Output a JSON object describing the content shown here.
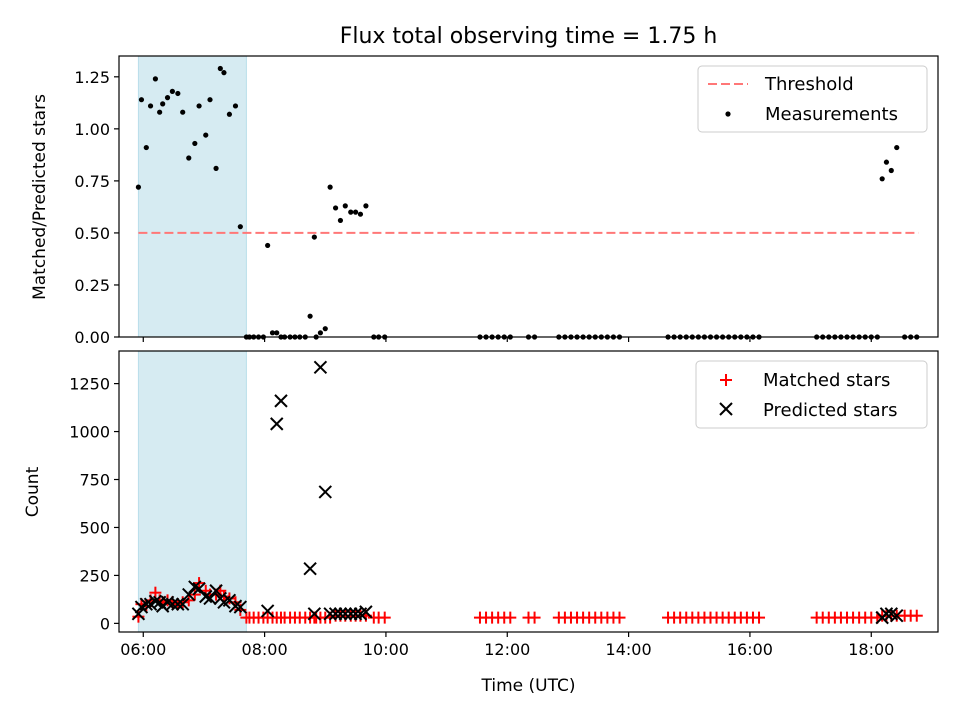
{
  "title": "Flux total observing time = 1.75 h",
  "chart_data": [
    {
      "type": "scatter",
      "ylabel": "Matched/Predicted stars",
      "x_unit": "hours UTC",
      "xlim": [
        5.6,
        19.1
      ],
      "ylim": [
        0,
        1.35
      ],
      "yticks": [
        0,
        0.25,
        0.5,
        0.75,
        1.0,
        1.25
      ],
      "ytick_labels": [
        "0.00",
        "0.25",
        "0.50",
        "0.75",
        "1.00",
        "1.25"
      ],
      "highlight_span": [
        5.92,
        7.7
      ],
      "highlight_color": "#add8e6",
      "threshold": {
        "name": "Threshold",
        "value": 0.5,
        "x_range": [
          5.92,
          18.78
        ],
        "color": "#ff7777"
      },
      "legend": {
        "loc": "upper right",
        "entries": [
          "Threshold",
          "Measurements"
        ]
      },
      "series": [
        {
          "name": "Measurements",
          "color": "#000000",
          "x": [
            5.92,
            5.97,
            6.05,
            6.12,
            6.2,
            6.27,
            6.32,
            6.4,
            6.48,
            6.57,
            6.65,
            6.75,
            6.85,
            6.92,
            7.03,
            7.1,
            7.2,
            7.27,
            7.33,
            7.42,
            7.52,
            7.6,
            7.7,
            7.75,
            7.82,
            7.9,
            7.98,
            8.05,
            8.13,
            8.2,
            8.27,
            8.33,
            8.42,
            8.5,
            8.58,
            8.67,
            8.75,
            8.82,
            8.85,
            8.92,
            9.0,
            9.08,
            9.17,
            9.25,
            9.33,
            9.42,
            9.5,
            9.58,
            9.67,
            9.8,
            9.88,
            9.98,
            11.55,
            11.65,
            11.75,
            11.85,
            11.95,
            12.05,
            12.35,
            12.45,
            12.85,
            12.95,
            13.05,
            13.15,
            13.25,
            13.35,
            13.45,
            13.55,
            13.65,
            13.75,
            13.85,
            14.65,
            14.75,
            14.85,
            14.95,
            15.05,
            15.15,
            15.25,
            15.35,
            15.45,
            15.55,
            15.65,
            15.75,
            15.85,
            15.95,
            16.05,
            16.15,
            17.1,
            17.2,
            17.3,
            17.4,
            17.5,
            17.6,
            17.7,
            17.8,
            17.9,
            18.0,
            18.1,
            18.18,
            18.25,
            18.33,
            18.42,
            18.55,
            18.65,
            18.75
          ],
          "y": [
            0.72,
            1.14,
            0.91,
            1.11,
            1.24,
            1.08,
            1.12,
            1.15,
            1.18,
            1.17,
            1.08,
            0.86,
            0.93,
            1.11,
            0.97,
            1.14,
            0.81,
            1.29,
            1.27,
            1.07,
            1.11,
            0.53,
            0.0,
            0.0,
            0.0,
            0.0,
            0.0,
            0.44,
            0.02,
            0.02,
            0.0,
            0.0,
            0.0,
            0.0,
            0.0,
            0.0,
            0.1,
            0.48,
            0.0,
            0.02,
            0.04,
            0.72,
            0.62,
            0.56,
            0.63,
            0.6,
            0.6,
            0.59,
            0.63,
            0.0,
            0.0,
            0.0,
            0.0,
            0.0,
            0.0,
            0.0,
            0.0,
            0.0,
            0.0,
            0.0,
            0.0,
            0.0,
            0.0,
            0.0,
            0.0,
            0.0,
            0.0,
            0.0,
            0.0,
            0.0,
            0.0,
            0.0,
            0.0,
            0.0,
            0.0,
            0.0,
            0.0,
            0.0,
            0.0,
            0.0,
            0.0,
            0.0,
            0.0,
            0.0,
            0.0,
            0.0,
            0.0,
            0.0,
            0.0,
            0.0,
            0.0,
            0.0,
            0.0,
            0.0,
            0.0,
            0.0,
            0.0,
            0.0,
            0.76,
            0.84,
            0.8,
            0.91,
            0.0,
            0.0,
            0.0
          ]
        }
      ]
    },
    {
      "type": "scatter",
      "ylabel": "Count",
      "xlabel": "Time (UTC)",
      "xlim": [
        5.6,
        19.1
      ],
      "ylim": [
        -45,
        1420
      ],
      "yticks": [
        0,
        250,
        500,
        750,
        1000,
        1250
      ],
      "ytick_labels": [
        "0",
        "250",
        "500",
        "750",
        "1000",
        "1250"
      ],
      "xticks": [
        6,
        8,
        10,
        12,
        14,
        16,
        18
      ],
      "xtick_labels": [
        "06:00",
        "08:00",
        "10:00",
        "12:00",
        "14:00",
        "16:00",
        "18:00"
      ],
      "highlight_span": [
        5.92,
        7.7
      ],
      "highlight_color": "#add8e6",
      "legend": {
        "loc": "upper right",
        "entries": [
          "Matched stars",
          "Predicted stars"
        ]
      },
      "series": [
        {
          "name": "Matched stars",
          "marker": "+",
          "color": "#ff0000",
          "x": [
            5.92,
            5.97,
            6.05,
            6.12,
            6.2,
            6.27,
            6.32,
            6.4,
            6.48,
            6.57,
            6.65,
            6.75,
            6.85,
            6.92,
            7.03,
            7.1,
            7.2,
            7.27,
            7.33,
            7.42,
            7.52,
            7.6,
            7.7,
            7.75,
            7.82,
            7.9,
            7.98,
            8.05,
            8.13,
            8.2,
            8.27,
            8.33,
            8.42,
            8.5,
            8.58,
            8.67,
            8.75,
            8.82,
            8.85,
            8.92,
            9.0,
            9.08,
            9.17,
            9.25,
            9.33,
            9.42,
            9.5,
            9.58,
            9.67,
            9.8,
            9.88,
            9.98,
            11.55,
            11.65,
            11.75,
            11.85,
            11.95,
            12.05,
            12.35,
            12.45,
            12.85,
            12.95,
            13.05,
            13.15,
            13.25,
            13.35,
            13.45,
            13.55,
            13.65,
            13.75,
            13.85,
            14.65,
            14.75,
            14.85,
            14.95,
            15.05,
            15.15,
            15.25,
            15.35,
            15.45,
            15.55,
            15.65,
            15.75,
            15.85,
            15.95,
            16.05,
            16.15,
            17.1,
            17.2,
            17.3,
            17.4,
            17.5,
            17.6,
            17.7,
            17.8,
            17.9,
            18.0,
            18.1,
            18.18,
            18.25,
            18.33,
            18.42,
            18.55,
            18.65,
            18.75
          ],
          "y": [
            35,
            100,
            90,
            120,
            160,
            120,
            110,
            120,
            110,
            100,
            110,
            120,
            150,
            210,
            170,
            150,
            150,
            170,
            140,
            130,
            110,
            70,
            30,
            30,
            30,
            30,
            30,
            30,
            30,
            30,
            30,
            30,
            30,
            30,
            30,
            30,
            30,
            30,
            30,
            30,
            30,
            30,
            40,
            40,
            40,
            40,
            40,
            40,
            40,
            30,
            30,
            30,
            30,
            30,
            30,
            30,
            30,
            30,
            30,
            30,
            30,
            30,
            30,
            30,
            30,
            30,
            30,
            30,
            30,
            30,
            30,
            30,
            30,
            30,
            30,
            30,
            30,
            30,
            30,
            30,
            30,
            30,
            30,
            30,
            30,
            30,
            30,
            30,
            30,
            30,
            30,
            30,
            30,
            30,
            30,
            30,
            30,
            30,
            40,
            40,
            40,
            40,
            40,
            40,
            40
          ]
        },
        {
          "name": "Predicted stars",
          "marker": "x",
          "color": "#000000",
          "x": [
            5.92,
            5.97,
            6.05,
            6.12,
            6.2,
            6.27,
            6.32,
            6.4,
            6.48,
            6.57,
            6.65,
            6.75,
            6.85,
            6.92,
            7.03,
            7.1,
            7.2,
            7.27,
            7.33,
            7.42,
            7.52,
            7.6,
            8.05,
            8.2,
            8.27,
            8.75,
            8.82,
            8.92,
            9.0,
            9.08,
            9.17,
            9.25,
            9.33,
            9.42,
            9.5,
            9.58,
            9.67,
            18.18,
            18.25,
            18.33,
            18.42
          ],
          "y": [
            50,
            85,
            100,
            100,
            115,
            110,
            90,
            110,
            100,
            100,
            100,
            150,
            190,
            180,
            140,
            130,
            170,
            130,
            110,
            120,
            90,
            85,
            65,
            1040,
            1160,
            285,
            50,
            1335,
            685,
            50,
            50,
            50,
            50,
            50,
            50,
            50,
            60,
            30,
            50,
            50,
            40
          ]
        }
      ]
    }
  ]
}
